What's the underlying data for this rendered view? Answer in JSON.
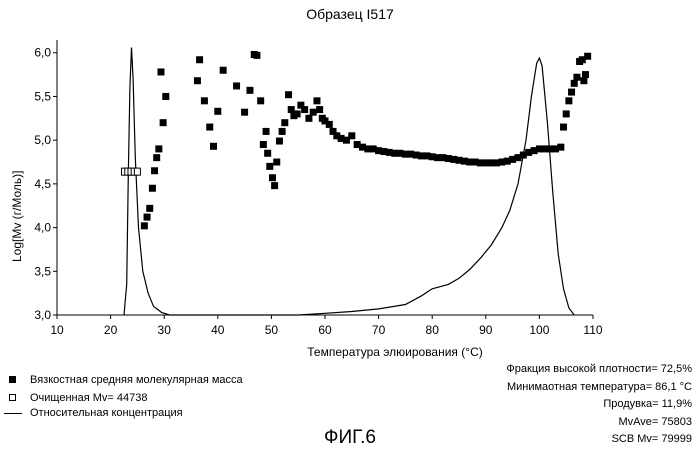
{
  "chart_data": {
    "type": "scatter",
    "title": "Образец I517",
    "xlabel": "Температура элюирования (°C)",
    "ylabel": "Log[Mv (г/Моль)]",
    "xlim": [
      10,
      110
    ],
    "ylim": [
      3.0,
      6.1
    ],
    "xticks": [
      10,
      20,
      30,
      40,
      50,
      60,
      70,
      80,
      90,
      100,
      110
    ],
    "yticks": [
      3.0,
      3.5,
      4.0,
      4.5,
      5.0,
      5.5,
      6.0
    ],
    "xtick_labels": [
      "10",
      "20",
      "30",
      "40",
      "50",
      "60",
      "70",
      "80",
      "90",
      "100",
      "110"
    ],
    "ytick_labels": [
      "3,0",
      "3,5",
      "4,0",
      "4,5",
      "5,0",
      "5,5",
      "6,0"
    ],
    "grid": false,
    "series": [
      {
        "name": "Вязкостная средняя молекулярная масса",
        "marker": "filled-square",
        "points": [
          [
            26.3,
            4.02
          ],
          [
            26.8,
            4.12
          ],
          [
            27.3,
            4.22
          ],
          [
            27.8,
            4.45
          ],
          [
            28.2,
            4.65
          ],
          [
            28.6,
            4.8
          ],
          [
            29.0,
            4.9
          ],
          [
            29.4,
            5.78
          ],
          [
            29.8,
            5.2
          ],
          [
            30.3,
            5.5
          ],
          [
            36.2,
            5.68
          ],
          [
            36.6,
            5.92
          ],
          [
            37.5,
            5.45
          ],
          [
            38.5,
            5.15
          ],
          [
            39.2,
            4.93
          ],
          [
            40.0,
            5.33
          ],
          [
            41.0,
            5.8
          ],
          [
            43.5,
            5.62
          ],
          [
            45.0,
            5.32
          ],
          [
            46.0,
            5.57
          ],
          [
            46.8,
            5.98
          ],
          [
            47.3,
            5.97
          ],
          [
            48.0,
            5.45
          ],
          [
            48.5,
            4.95
          ],
          [
            49.0,
            5.1
          ],
          [
            49.3,
            4.85
          ],
          [
            49.7,
            4.7
          ],
          [
            50.2,
            4.57
          ],
          [
            50.6,
            4.48
          ],
          [
            51.0,
            4.75
          ],
          [
            51.5,
            4.99
          ],
          [
            52.0,
            5.1
          ],
          [
            52.5,
            5.2
          ],
          [
            53.2,
            5.52
          ],
          [
            53.7,
            5.35
          ],
          [
            54.2,
            5.28
          ],
          [
            54.8,
            5.3
          ],
          [
            55.5,
            5.4
          ],
          [
            56.2,
            5.35
          ],
          [
            57.0,
            5.25
          ],
          [
            57.8,
            5.32
          ],
          [
            58.5,
            5.45
          ],
          [
            59.0,
            5.35
          ],
          [
            59.5,
            5.25
          ],
          [
            60.0,
            5.22
          ],
          [
            60.8,
            5.18
          ],
          [
            61.5,
            5.1
          ],
          [
            62.2,
            5.05
          ],
          [
            63.0,
            5.02
          ],
          [
            64.0,
            5.0
          ],
          [
            65.0,
            5.05
          ],
          [
            66.0,
            4.95
          ],
          [
            67.0,
            4.92
          ],
          [
            68.0,
            4.9
          ],
          [
            69.0,
            4.9
          ],
          [
            70.0,
            4.88
          ],
          [
            71.0,
            4.87
          ],
          [
            72.0,
            4.86
          ],
          [
            73.0,
            4.85
          ],
          [
            74.0,
            4.85
          ],
          [
            75.0,
            4.84
          ],
          [
            76.0,
            4.84
          ],
          [
            77.0,
            4.83
          ],
          [
            78.0,
            4.82
          ],
          [
            79.0,
            4.82
          ],
          [
            80.0,
            4.81
          ],
          [
            81.0,
            4.8
          ],
          [
            82.0,
            4.8
          ],
          [
            83.0,
            4.79
          ],
          [
            84.0,
            4.78
          ],
          [
            85.0,
            4.77
          ],
          [
            86.0,
            4.76
          ],
          [
            87.0,
            4.75
          ],
          [
            88.0,
            4.75
          ],
          [
            89.0,
            4.74
          ],
          [
            90.0,
            4.74
          ],
          [
            91.0,
            4.74
          ],
          [
            92.0,
            4.74
          ],
          [
            93.0,
            4.75
          ],
          [
            94.0,
            4.76
          ],
          [
            95.0,
            4.78
          ],
          [
            96.0,
            4.8
          ],
          [
            97.0,
            4.83
          ],
          [
            98.0,
            4.86
          ],
          [
            99.0,
            4.88
          ],
          [
            100.0,
            4.9
          ],
          [
            101.0,
            4.9
          ],
          [
            102.0,
            4.9
          ],
          [
            103.0,
            4.9
          ],
          [
            104.0,
            4.92
          ],
          [
            104.5,
            5.15
          ],
          [
            105.0,
            5.3
          ],
          [
            105.5,
            5.45
          ],
          [
            106.0,
            5.55
          ],
          [
            106.5,
            5.65
          ],
          [
            107.0,
            5.72
          ],
          [
            107.5,
            5.9
          ],
          [
            108.0,
            5.92
          ],
          [
            108.3,
            5.68
          ],
          [
            108.6,
            5.75
          ],
          [
            109.0,
            5.96
          ]
        ]
      },
      {
        "name": "Очищенная Mv= 44738",
        "marker": "open-square",
        "points": [
          [
            22.6,
            4.64
          ],
          [
            23.2,
            4.64
          ],
          [
            23.8,
            4.64
          ],
          [
            24.4,
            4.64
          ],
          [
            25.0,
            4.64
          ]
        ]
      },
      {
        "name": "Относительная концентрация",
        "marker": "line",
        "points": [
          [
            22.5,
            3.0
          ],
          [
            23.0,
            3.35
          ],
          [
            23.3,
            4.6
          ],
          [
            23.6,
            5.6
          ],
          [
            23.9,
            6.06
          ],
          [
            24.2,
            5.7
          ],
          [
            24.6,
            4.8
          ],
          [
            25.2,
            4.0
          ],
          [
            26.0,
            3.5
          ],
          [
            27.0,
            3.25
          ],
          [
            28.0,
            3.1
          ],
          [
            29.5,
            3.03
          ],
          [
            31.0,
            3.0
          ],
          [
            55.0,
            3.0
          ],
          [
            60.0,
            3.02
          ],
          [
            65.0,
            3.04
          ],
          [
            70.0,
            3.07
          ],
          [
            75.0,
            3.12
          ],
          [
            78.0,
            3.22
          ],
          [
            80.0,
            3.3
          ],
          [
            83.0,
            3.35
          ],
          [
            85.0,
            3.42
          ],
          [
            87.0,
            3.52
          ],
          [
            89.0,
            3.65
          ],
          [
            91.0,
            3.8
          ],
          [
            93.0,
            4.0
          ],
          [
            94.5,
            4.2
          ],
          [
            96.0,
            4.5
          ],
          [
            97.5,
            5.0
          ],
          [
            98.5,
            5.5
          ],
          [
            99.5,
            5.88
          ],
          [
            100.0,
            5.94
          ],
          [
            100.5,
            5.85
          ],
          [
            101.5,
            5.2
          ],
          [
            102.5,
            4.4
          ],
          [
            103.5,
            3.7
          ],
          [
            104.5,
            3.3
          ],
          [
            105.5,
            3.08
          ],
          [
            106.5,
            3.0
          ]
        ]
      }
    ]
  },
  "legend": {
    "items": [
      {
        "label": "Вязкостная средняя молекулярная масса",
        "symbol": "filled-square"
      },
      {
        "label": "Очищенная Mv= 44738",
        "symbol": "open-square"
      },
      {
        "label": "Относительная концентрация",
        "symbol": "line"
      }
    ]
  },
  "stats": {
    "high_density_fraction": "Фракция высокой плотности= 72,5%",
    "min_temperature": "Минимаотная температура= 86,1 °C",
    "purge": "Продувка= 11,9%",
    "mv_ave": "MvAve= 75803",
    "scb_mv": "SCB Mv= 79999"
  },
  "figure_label": "ФИГ.6",
  "colors": {
    "ink": "#000000",
    "background": "#ffffff"
  }
}
